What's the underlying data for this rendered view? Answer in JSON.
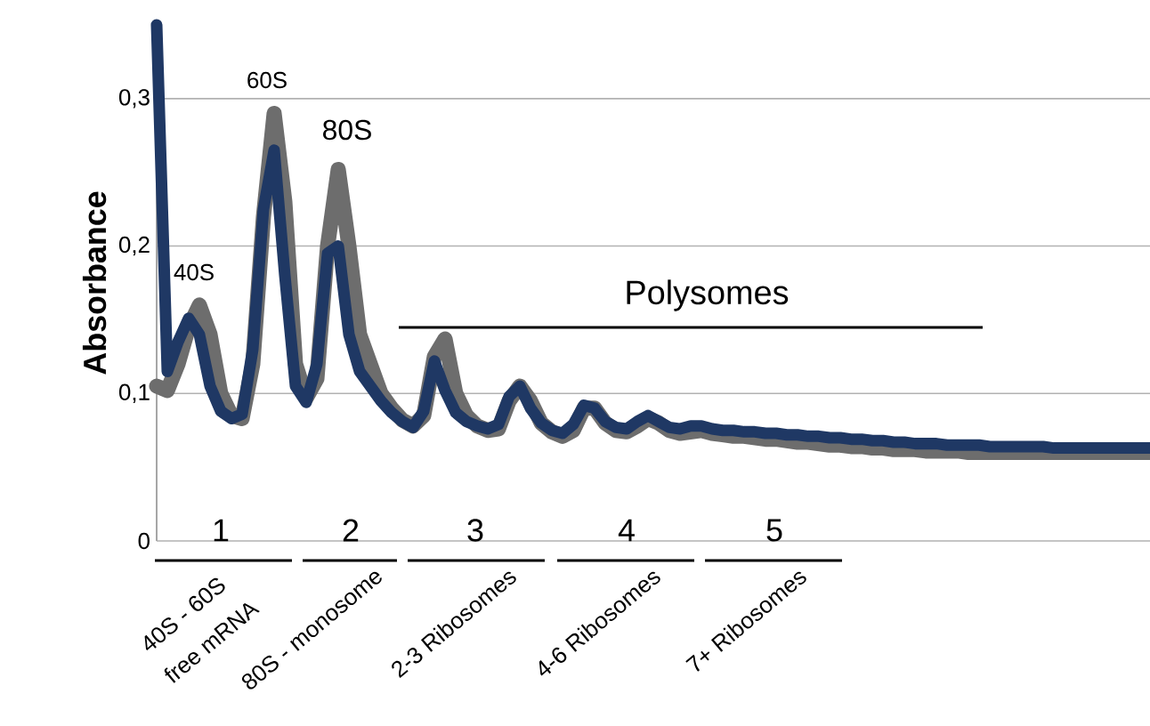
{
  "chart_data": {
    "type": "line",
    "ylabel": "Absorbance",
    "categories": [
      null,
      null,
      null,
      null,
      null,
      null,
      null,
      null,
      null,
      null,
      null,
      null,
      null,
      null,
      null,
      null,
      null,
      null,
      null,
      null,
      null,
      null,
      null,
      null,
      null,
      null,
      null,
      null,
      null,
      null,
      null,
      null,
      null,
      null,
      null,
      null,
      null,
      null,
      null,
      null,
      null,
      null,
      null,
      null,
      null,
      null,
      null,
      null,
      null,
      null,
      null,
      null,
      null,
      null,
      null,
      null,
      null,
      null,
      null,
      null,
      null,
      null,
      null,
      null,
      null,
      null,
      null,
      null,
      null,
      null,
      null,
      null,
      null,
      null,
      null,
      null,
      null,
      null,
      null,
      null,
      null,
      null,
      null,
      null,
      null,
      null,
      null,
      null,
      null,
      null,
      null,
      null,
      null,
      null
    ],
    "series": [
      {
        "color": "#6d6d6d",
        "values": [
          0.105,
          0.102,
          0.12,
          0.145,
          0.16,
          0.14,
          0.1,
          0.085,
          0.083,
          0.12,
          0.22,
          0.29,
          0.23,
          0.12,
          0.097,
          0.11,
          0.2,
          0.252,
          0.2,
          0.14,
          0.12,
          0.1,
          0.09,
          0.082,
          0.078,
          0.085,
          0.125,
          0.137,
          0.1,
          0.085,
          0.078,
          0.075,
          0.076,
          0.095,
          0.105,
          0.095,
          0.08,
          0.074,
          0.071,
          0.075,
          0.09,
          0.09,
          0.08,
          0.075,
          0.074,
          0.078,
          0.083,
          0.08,
          0.075,
          0.073,
          0.074,
          0.075,
          0.073,
          0.072,
          0.071,
          0.071,
          0.07,
          0.069,
          0.069,
          0.068,
          0.067,
          0.067,
          0.066,
          0.065,
          0.065,
          0.064,
          0.064,
          0.063,
          0.063,
          0.062,
          0.062,
          0.062,
          0.061,
          0.061,
          0.061,
          0.061,
          0.06,
          0.06,
          0.06,
          0.06,
          0.06,
          0.06,
          0.06,
          0.06,
          0.06,
          0.06,
          0.06,
          0.06,
          0.06,
          0.06,
          0.06,
          0.06,
          0.06,
          0.06
        ]
      },
      {
        "color": "#1f3864",
        "values": [
          0.35,
          0.115,
          0.135,
          0.151,
          0.14,
          0.105,
          0.088,
          0.083,
          0.086,
          0.13,
          0.225,
          0.265,
          0.18,
          0.105,
          0.094,
          0.12,
          0.195,
          0.2,
          0.14,
          0.115,
          0.105,
          0.095,
          0.087,
          0.081,
          0.077,
          0.088,
          0.122,
          0.102,
          0.087,
          0.081,
          0.078,
          0.076,
          0.079,
          0.098,
          0.105,
          0.09,
          0.08,
          0.075,
          0.073,
          0.079,
          0.092,
          0.09,
          0.081,
          0.077,
          0.076,
          0.081,
          0.085,
          0.081,
          0.077,
          0.076,
          0.078,
          0.078,
          0.076,
          0.075,
          0.075,
          0.074,
          0.074,
          0.073,
          0.073,
          0.072,
          0.072,
          0.071,
          0.071,
          0.07,
          0.07,
          0.069,
          0.069,
          0.068,
          0.068,
          0.067,
          0.067,
          0.066,
          0.066,
          0.066,
          0.065,
          0.065,
          0.065,
          0.065,
          0.064,
          0.064,
          0.064,
          0.064,
          0.064,
          0.064,
          0.063,
          0.063,
          0.063,
          0.063,
          0.063,
          0.063,
          0.063,
          0.063,
          0.063,
          0.063
        ]
      }
    ],
    "ylim": [
      0,
      0.35
    ],
    "yticks": [
      0,
      {
        "value": 0.1,
        "label": "0,1"
      },
      {
        "value": 0.2,
        "label": "0,2"
      },
      {
        "value": 0.3,
        "label": "0,3"
      }
    ],
    "grid": "y",
    "tick_labels": "y",
    "annotations": [
      "40S",
      "60S",
      "80S",
      "Polysomes",
      "1",
      "2",
      "3",
      "4",
      "5",
      "40S - 60S",
      "free mRNA",
      "80S - monosome",
      "2-3 Ribosomes",
      "4-6 Ribosomes",
      "7+ Ribosomes"
    ]
  }
}
